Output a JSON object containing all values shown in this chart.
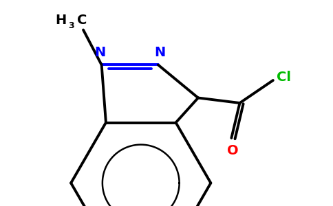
{
  "background_color": "#ffffff",
  "bond_color": "#000000",
  "bond_width": 2.8,
  "n_color": "#0000ff",
  "o_color": "#ff0000",
  "cl_color": "#00bb00",
  "figsize": [
    4.84,
    3.0
  ],
  "dpi": 100,
  "xlim": [
    0,
    10
  ],
  "ylim": [
    0,
    6.2
  ]
}
